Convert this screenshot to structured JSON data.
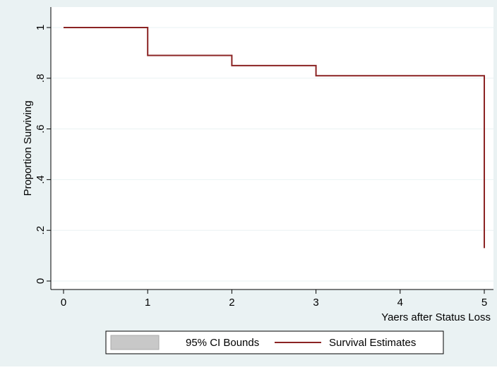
{
  "chart_data": {
    "type": "step",
    "xlabel": "Yaers after Status Loss",
    "ylabel": "Proportion Surviving",
    "xlim": [
      0,
      5
    ],
    "xticks": [
      0,
      1,
      2,
      3,
      4,
      5
    ],
    "ylim": [
      0,
      1
    ],
    "yticks": [
      0,
      {
        "value": 0.2,
        "label": ".2"
      },
      {
        "value": 0.4,
        "label": ".4"
      },
      {
        "value": 0.6,
        "label": ".6"
      },
      {
        "value": 0.8,
        "label": ".8"
      },
      1
    ],
    "grid": true,
    "series": [
      {
        "name": "95% CI Bounds",
        "color": "#c8c8c8",
        "kind": "area"
      },
      {
        "name": "Survival Estimates",
        "color": "#8b2323",
        "kind": "line",
        "x": [
          0,
          1,
          2,
          3,
          5
        ],
        "values": [
          1,
          0.89,
          0.85,
          0.81,
          0.13
        ]
      }
    ]
  }
}
